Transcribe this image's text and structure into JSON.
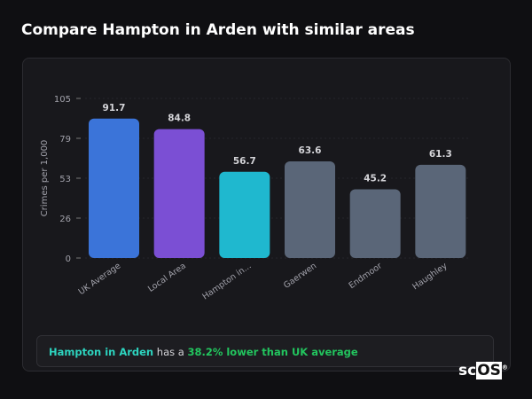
{
  "title": "Compare Hampton in Arden with similar areas",
  "chart_data": {
    "type": "bar",
    "categories": [
      "UK Average",
      "Local Area",
      "Hampton in...",
      "Gaerwen",
      "Endmoor",
      "Haughley"
    ],
    "values": [
      91.7,
      84.8,
      56.7,
      63.6,
      45.2,
      61.3
    ],
    "value_labels": [
      "91.7",
      "84.8",
      "56.7",
      "63.6",
      "45.2",
      "61.3"
    ],
    "colors": [
      "#3b74d9",
      "#7b4fd4",
      "#1fb8cf",
      "#5a6678",
      "#5a6678",
      "#5a6678"
    ],
    "ylabel": "Crimes per 1,000",
    "yticks": [
      "0",
      "26",
      "53",
      "79",
      "105"
    ],
    "ytick_values": [
      0,
      26.25,
      52.5,
      78.75,
      105
    ],
    "ylim": [
      0,
      105
    ],
    "grid": true
  },
  "note": {
    "area": "Hampton in Arden",
    "mid": " has a ",
    "stat": "38.2% lower than UK average"
  },
  "logo": {
    "a": "sc",
    "b": "OS",
    "reg": "®"
  }
}
